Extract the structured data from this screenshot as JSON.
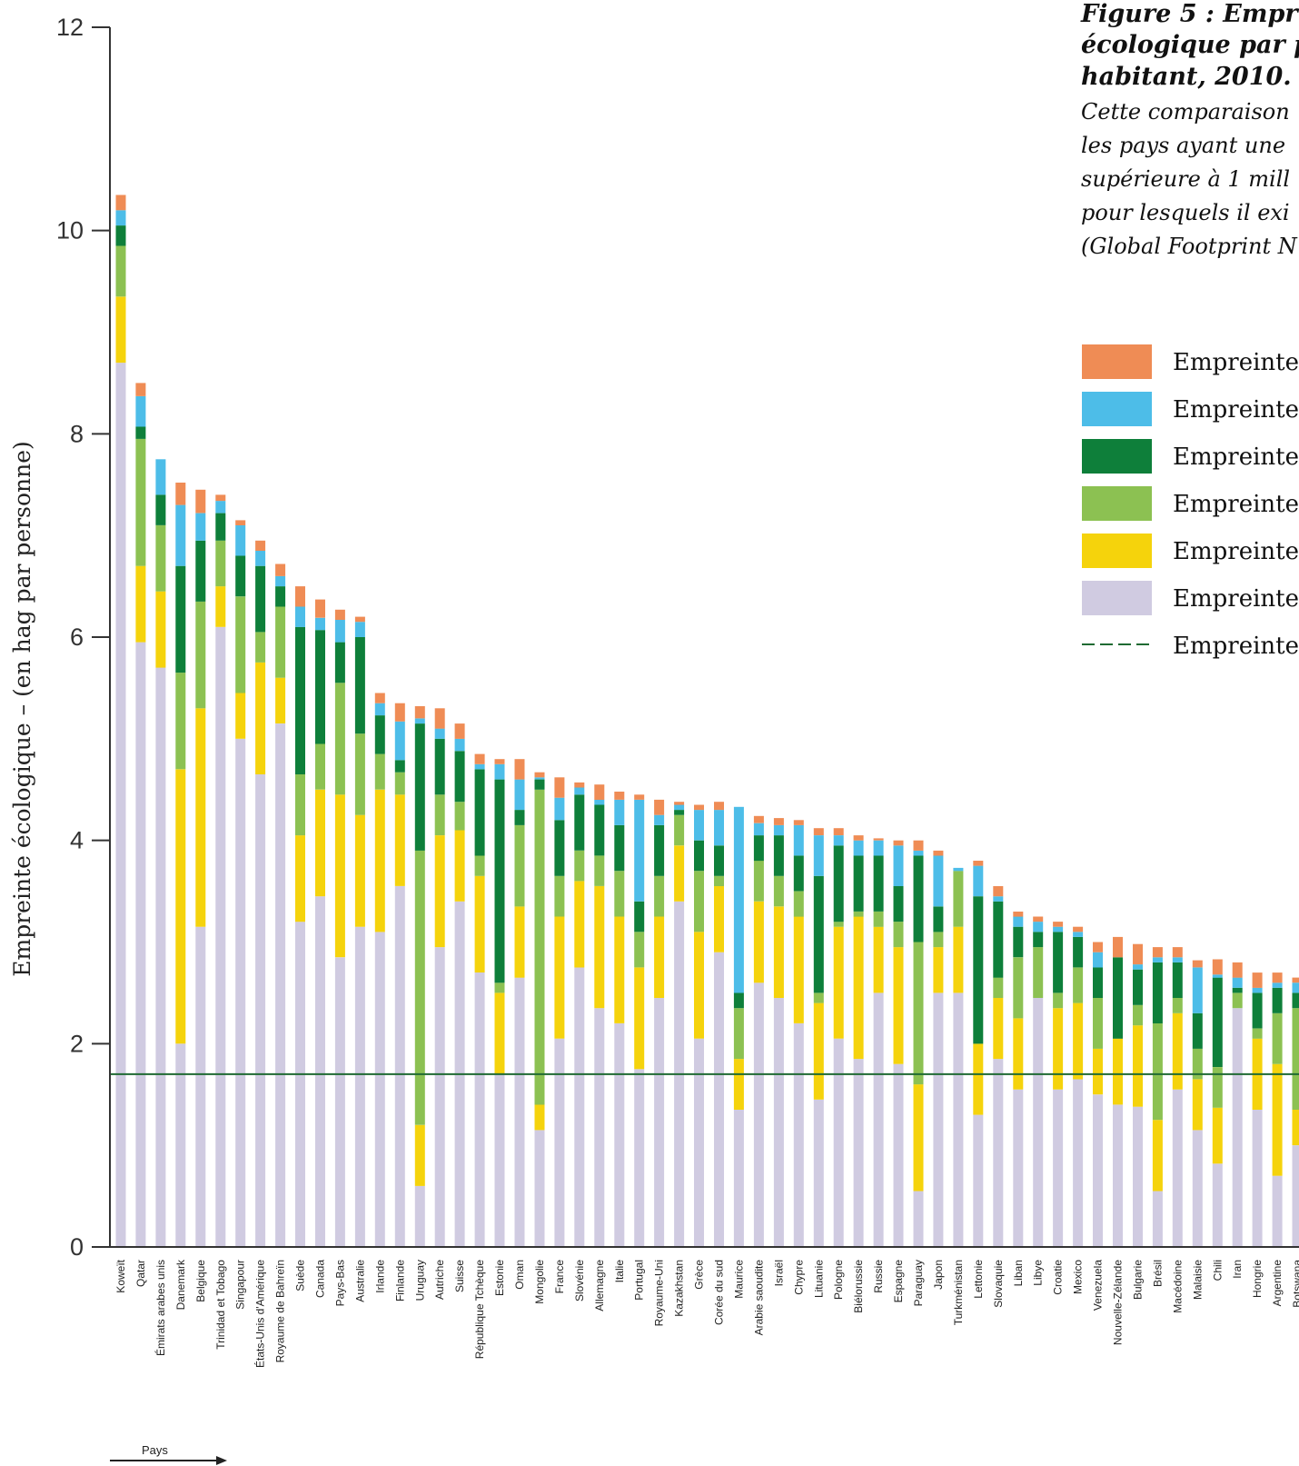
{
  "colors": {
    "carbone": "#ef8c55",
    "peche": "#4dbde8",
    "foret": "#0e7f3a",
    "paturage": "#8cc152",
    "culture": "#f5d30c",
    "bati": "#d0cbe1",
    "moyenne_line": "#1f6a32",
    "axis": "#333333"
  },
  "figure": {
    "title_lines": [
      "Figure 5 : Empr",
      "écologique par p",
      "habitant, 2010."
    ],
    "desc_lines": [
      "Cette comparaison",
      "les pays ayant une",
      "supérieure à 1 mill",
      "pour lesquels il exi",
      "(Global Footprint N"
    ]
  },
  "legend": {
    "items": [
      {
        "label": "Empreinte",
        "color_key": "carbone",
        "type": "box"
      },
      {
        "label": "Empreinte",
        "color_key": "peche",
        "type": "box"
      },
      {
        "label": "Empreinte",
        "color_key": "foret",
        "type": "box"
      },
      {
        "label": "Empreinte",
        "color_key": "paturage",
        "type": "box"
      },
      {
        "label": "Empreinte",
        "color_key": "culture",
        "type": "box"
      },
      {
        "label": "Empreinte",
        "color_key": "bati",
        "type": "box"
      },
      {
        "label": "Empreinte",
        "color_key": "moyenne_line",
        "type": "line"
      }
    ]
  },
  "axis": {
    "ylabel": "Empreinte écologique – (en hag par personne)",
    "xlabel": "Pays"
  },
  "chart_data": {
    "type": "bar",
    "stacked": true,
    "ylim": [
      0,
      12
    ],
    "yticks": [
      0,
      2,
      4,
      6,
      8,
      10,
      12
    ],
    "grid": false,
    "legend_position": "right",
    "reference_line": 1.7,
    "series": [
      {
        "color_key": "bati"
      },
      {
        "color_key": "culture"
      },
      {
        "color_key": "paturage"
      },
      {
        "color_key": "foret"
      },
      {
        "color_key": "peche"
      },
      {
        "color_key": "carbone"
      }
    ],
    "categories": [
      "Koweït",
      "Qatar",
      "Émirats arabes unis",
      "Danemark",
      "Belgique",
      "Trinidad et Tobago",
      "Singapour",
      "États-Unis d'Amérique",
      "Royaume de Bahreïn",
      "Suède",
      "Canada",
      "Pays-Bas",
      "Australie",
      "Irlande",
      "Finlande",
      "Uruguay",
      "Autriche",
      "Suisse",
      "République Tchèque",
      "Estonie",
      "Oman",
      "Mongolie",
      "France",
      "Slovénie",
      "Allemagne",
      "Italie",
      "Portugal",
      "Royaume-Uni",
      "Kazakhstan",
      "Grèce",
      "Corée du sud",
      "Maurice",
      "Arabie saoudite",
      "Israël",
      "Chypre",
      "Lituanie",
      "Pologne",
      "Biélorussie",
      "Russie",
      "Espagne",
      "Paraguay",
      "Japon",
      "Turkménistan",
      "Lettonie",
      "Slovaquie",
      "Liban",
      "Libye",
      "Croatie",
      "Mexico",
      "Venezuela",
      "Nouvelle-Zélande",
      "Bulgarie",
      "Brésil",
      "Macédoine",
      "Malaisie",
      "Chili",
      "Iran",
      "Hongrie",
      "Argentine",
      "Botswana"
    ],
    "values": [
      [
        8.7,
        0.65,
        0.5,
        0.2,
        0.15,
        0.15
      ],
      [
        5.95,
        0.75,
        1.25,
        0.12,
        0.3,
        0.13
      ],
      [
        5.7,
        0.75,
        0.65,
        0.3,
        0.35,
        0.0
      ],
      [
        2.0,
        2.7,
        0.95,
        1.05,
        0.6,
        0.22
      ],
      [
        3.15,
        2.15,
        1.05,
        0.6,
        0.27,
        0.23
      ],
      [
        6.1,
        0.4,
        0.45,
        0.27,
        0.12,
        0.06
      ],
      [
        5.0,
        0.45,
        0.95,
        0.4,
        0.3,
        0.05
      ],
      [
        4.65,
        1.1,
        0.3,
        0.65,
        0.15,
        0.1
      ],
      [
        5.15,
        0.45,
        0.7,
        0.2,
        0.1,
        0.12
      ],
      [
        3.2,
        0.85,
        0.6,
        1.45,
        0.2,
        0.2
      ],
      [
        3.45,
        1.05,
        0.45,
        1.12,
        0.12,
        0.18
      ],
      [
        2.85,
        1.6,
        1.1,
        0.4,
        0.22,
        0.1
      ],
      [
        3.15,
        1.1,
        0.8,
        0.95,
        0.15,
        0.05
      ],
      [
        3.1,
        1.4,
        0.35,
        0.38,
        0.12,
        0.1
      ],
      [
        3.55,
        0.9,
        0.22,
        0.12,
        0.38,
        0.18
      ],
      [
        0.6,
        0.6,
        2.7,
        1.25,
        0.05,
        0.12
      ],
      [
        2.95,
        1.1,
        0.4,
        0.55,
        0.1,
        0.2
      ],
      [
        3.4,
        0.7,
        0.28,
        0.5,
        0.12,
        0.15
      ],
      [
        2.7,
        0.95,
        0.2,
        0.85,
        0.05,
        0.1
      ],
      [
        1.7,
        0.8,
        0.1,
        2.0,
        0.15,
        0.05
      ],
      [
        2.65,
        0.7,
        0.8,
        0.15,
        0.3,
        0.2
      ],
      [
        1.15,
        0.25,
        3.1,
        0.1,
        0.02,
        0.05
      ],
      [
        2.05,
        1.2,
        0.4,
        0.55,
        0.22,
        0.2
      ],
      [
        2.75,
        0.85,
        0.3,
        0.55,
        0.07,
        0.05
      ],
      [
        2.35,
        1.2,
        0.3,
        0.5,
        0.05,
        0.15
      ],
      [
        2.2,
        1.05,
        0.45,
        0.45,
        0.25,
        0.08
      ],
      [
        1.75,
        1.0,
        0.35,
        0.3,
        1.0,
        0.05
      ],
      [
        2.45,
        0.8,
        0.4,
        0.5,
        0.1,
        0.15
      ],
      [
        3.4,
        0.55,
        0.3,
        0.05,
        0.05,
        0.03
      ],
      [
        2.05,
        1.05,
        0.6,
        0.3,
        0.3,
        0.05
      ],
      [
        2.9,
        0.65,
        0.1,
        0.3,
        0.35,
        0.08
      ],
      [
        1.35,
        0.5,
        0.5,
        0.15,
        1.83,
        0.0
      ],
      [
        2.6,
        0.8,
        0.4,
        0.25,
        0.12,
        0.07
      ],
      [
        2.45,
        0.9,
        0.3,
        0.4,
        0.1,
        0.07
      ],
      [
        2.2,
        1.05,
        0.25,
        0.35,
        0.3,
        0.05
      ],
      [
        1.45,
        0.95,
        0.1,
        1.15,
        0.4,
        0.07
      ],
      [
        2.05,
        1.1,
        0.05,
        0.75,
        0.1,
        0.07
      ],
      [
        1.85,
        1.4,
        0.05,
        0.55,
        0.15,
        0.05
      ],
      [
        2.5,
        0.65,
        0.15,
        0.55,
        0.15,
        0.02
      ],
      [
        1.8,
        1.15,
        0.25,
        0.35,
        0.4,
        0.05
      ],
      [
        0.55,
        1.05,
        1.4,
        0.85,
        0.05,
        0.1
      ],
      [
        2.5,
        0.45,
        0.15,
        0.25,
        0.5,
        0.05
      ],
      [
        2.5,
        0.65,
        0.55,
        0.0,
        0.03,
        0.0
      ],
      [
        1.3,
        0.7,
        0.0,
        1.45,
        0.3,
        0.05
      ],
      [
        1.85,
        0.6,
        0.2,
        0.75,
        0.05,
        0.1
      ],
      [
        1.55,
        0.7,
        0.6,
        0.3,
        0.1,
        0.05
      ],
      [
        2.45,
        0.0,
        0.5,
        0.15,
        0.1,
        0.05
      ],
      [
        1.55,
        0.8,
        0.15,
        0.6,
        0.05,
        0.05
      ],
      [
        1.65,
        0.75,
        0.35,
        0.3,
        0.05,
        0.05
      ],
      [
        1.5,
        0.45,
        0.5,
        0.3,
        0.15,
        0.1
      ],
      [
        1.4,
        0.65,
        0.0,
        0.8,
        0.0,
        0.2
      ],
      [
        1.38,
        0.8,
        0.2,
        0.35,
        0.05,
        0.2
      ],
      [
        0.55,
        0.7,
        0.95,
        0.6,
        0.05,
        0.1
      ],
      [
        1.55,
        0.75,
        0.15,
        0.35,
        0.05,
        0.1
      ],
      [
        1.15,
        0.5,
        0.3,
        0.35,
        0.45,
        0.07
      ],
      [
        0.82,
        0.55,
        0.4,
        0.88,
        0.03,
        0.15
      ],
      [
        2.35,
        0.0,
        0.15,
        0.05,
        0.1,
        0.15
      ],
      [
        1.35,
        0.7,
        0.1,
        0.35,
        0.05,
        0.15
      ],
      [
        0.7,
        1.1,
        0.5,
        0.25,
        0.05,
        0.1
      ],
      [
        1.0,
        0.35,
        1.0,
        0.15,
        0.1,
        0.05
      ]
    ]
  }
}
